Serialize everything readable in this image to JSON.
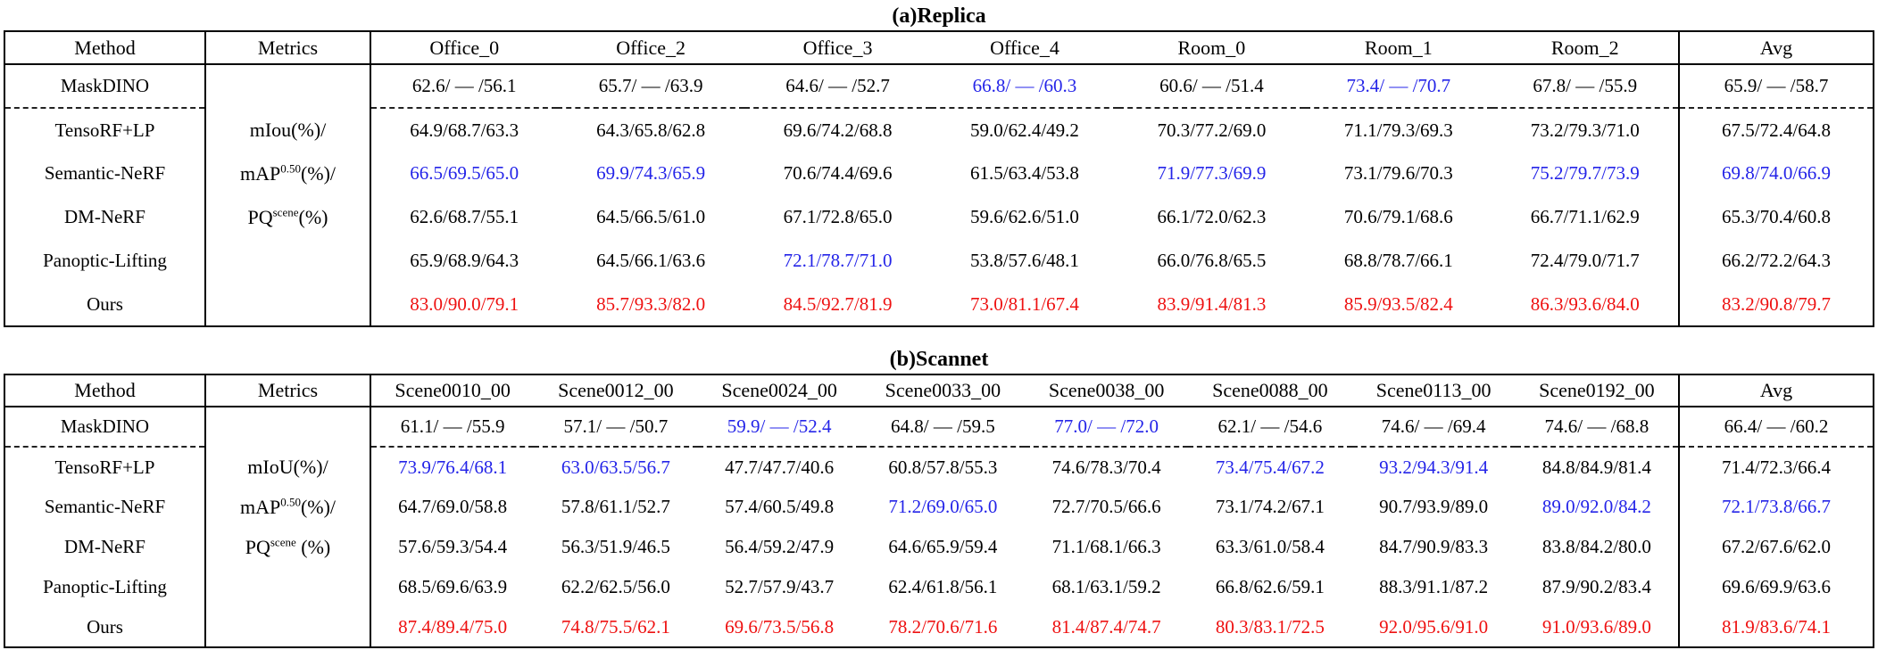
{
  "colors": {
    "best": "#ee1111",
    "second_best": "#2424e8",
    "normal": "#000000"
  },
  "tables": [
    {
      "title": "(a)Replica",
      "method_header": "Method",
      "metrics_header": "Metrics",
      "avg_header": "Avg",
      "scene_headers": [
        "Office_0",
        "Office_2",
        "Office_3",
        "Office_4",
        "Room_0",
        "Room_1",
        "Room_2"
      ],
      "metrics_lines": [
        [
          {
            "t": "mIou(%)/",
            "sup": false
          }
        ],
        [
          {
            "t": "mAP",
            "sup": false
          },
          {
            "t": "0.50",
            "sup": true
          },
          {
            "t": "(%)/",
            "sup": false
          }
        ],
        [
          {
            "t": "PQ",
            "sup": false
          },
          {
            "t": "scene",
            "sup": true
          },
          {
            "t": "(%)",
            "sup": false
          }
        ]
      ],
      "rows": [
        {
          "method": "MaskDINO",
          "cells": [
            {
              "t": "62.6/ — /56.1",
              "c": "k"
            },
            {
              "t": "65.7/ — /63.9",
              "c": "k"
            },
            {
              "t": "64.6/ — /52.7",
              "c": "k"
            },
            {
              "t": "66.8/ — /60.3",
              "c": "b"
            },
            {
              "t": "60.6/ — /51.4",
              "c": "k"
            },
            {
              "t": "73.4/ — /70.7",
              "c": "b"
            },
            {
              "t": "67.8/ — /55.9",
              "c": "k"
            },
            {
              "t": "65.9/ — /58.7",
              "c": "k"
            }
          ]
        },
        {
          "method": "TensoRF+LP",
          "cells": [
            {
              "t": "64.9/68.7/63.3",
              "c": "k"
            },
            {
              "t": "64.3/65.8/62.8",
              "c": "k"
            },
            {
              "t": "69.6/74.2/68.8",
              "c": "k"
            },
            {
              "t": "59.0/62.4/49.2",
              "c": "k"
            },
            {
              "t": "70.3/77.2/69.0",
              "c": "k"
            },
            {
              "t": "71.1/79.3/69.3",
              "c": "k"
            },
            {
              "t": "73.2/79.3/71.0",
              "c": "k"
            },
            {
              "t": "67.5/72.4/64.8",
              "c": "k"
            }
          ]
        },
        {
          "method": "Semantic-NeRF",
          "cells": [
            {
              "t": "66.5/69.5/65.0",
              "c": "b"
            },
            {
              "t": "69.9/74.3/65.9",
              "c": "b"
            },
            {
              "t": "70.6/74.4/69.6",
              "c": "k"
            },
            {
              "t": "61.5/63.4/53.8",
              "c": "k"
            },
            {
              "t": "71.9/77.3/69.9",
              "c": "b"
            },
            {
              "t": "73.1/79.6/70.3",
              "c": "k"
            },
            {
              "t": "75.2/79.7/73.9",
              "c": "b"
            },
            {
              "t": "69.8/74.0/66.9",
              "c": "b"
            }
          ]
        },
        {
          "method": "DM-NeRF",
          "cells": [
            {
              "t": "62.6/68.7/55.1",
              "c": "k"
            },
            {
              "t": "64.5/66.5/61.0",
              "c": "k"
            },
            {
              "t": "67.1/72.8/65.0",
              "c": "k"
            },
            {
              "t": "59.6/62.6/51.0",
              "c": "k"
            },
            {
              "t": "66.1/72.0/62.3",
              "c": "k"
            },
            {
              "t": "70.6/79.1/68.6",
              "c": "k"
            },
            {
              "t": "66.7/71.1/62.9",
              "c": "k"
            },
            {
              "t": "65.3/70.4/60.8",
              "c": "k"
            }
          ]
        },
        {
          "method": "Panoptic-Lifting",
          "cells": [
            {
              "t": "65.9/68.9/64.3",
              "c": "k"
            },
            {
              "t": "64.5/66.1/63.6",
              "c": "k"
            },
            {
              "t": "72.1/78.7/71.0",
              "c": "b"
            },
            {
              "t": "53.8/57.6/48.1",
              "c": "k"
            },
            {
              "t": "66.0/76.8/65.5",
              "c": "k"
            },
            {
              "t": "68.8/78.7/66.1",
              "c": "k"
            },
            {
              "t": "72.4/79.0/71.7",
              "c": "k"
            },
            {
              "t": "66.2/72.2/64.3",
              "c": "k"
            }
          ]
        },
        {
          "method": "Ours",
          "cells": [
            {
              "t": "83.0/90.0/79.1",
              "c": "r"
            },
            {
              "t": "85.7/93.3/82.0",
              "c": "r"
            },
            {
              "t": "84.5/92.7/81.9",
              "c": "r"
            },
            {
              "t": "73.0/81.1/67.4",
              "c": "r"
            },
            {
              "t": "83.9/91.4/81.3",
              "c": "r"
            },
            {
              "t": "85.9/93.5/82.4",
              "c": "r"
            },
            {
              "t": "86.3/93.6/84.0",
              "c": "r"
            },
            {
              "t": "83.2/90.8/79.7",
              "c": "r"
            }
          ]
        }
      ]
    },
    {
      "title": "(b)Scannet",
      "method_header": "Method",
      "metrics_header": "Metrics",
      "avg_header": "Avg",
      "scene_headers": [
        "Scene0010_00",
        "Scene0012_00",
        "Scene0024_00",
        "Scene0033_00",
        "Scene0038_00",
        "Scene0088_00",
        "Scene0113_00",
        "Scene0192_00"
      ],
      "metrics_lines": [
        [
          {
            "t": "mIoU(%)/",
            "sup": false
          }
        ],
        [
          {
            "t": "mAP",
            "sup": false
          },
          {
            "t": "0.50",
            "sup": true
          },
          {
            "t": "(%)/",
            "sup": false
          }
        ],
        [
          {
            "t": "PQ",
            "sup": false
          },
          {
            "t": "scene",
            "sup": true
          },
          {
            "t": " (%)",
            "sup": false
          }
        ]
      ],
      "rows": [
        {
          "method": "MaskDINO",
          "cells": [
            {
              "t": "61.1/ — /55.9",
              "c": "k"
            },
            {
              "t": "57.1/ — /50.7",
              "c": "k"
            },
            {
              "t": "59.9/ — /52.4",
              "c": "b"
            },
            {
              "t": "64.8/ — /59.5",
              "c": "k"
            },
            {
              "t": "77.0/ — /72.0",
              "c": "b"
            },
            {
              "t": "62.1/ — /54.6",
              "c": "k"
            },
            {
              "t": "74.6/ — /69.4",
              "c": "k"
            },
            {
              "t": "74.6/ — /68.8",
              "c": "k"
            },
            {
              "t": "66.4/ — /60.2",
              "c": "k"
            }
          ]
        },
        {
          "method": "TensoRF+LP",
          "cells": [
            {
              "t": "73.9/76.4/68.1",
              "c": "b"
            },
            {
              "t": "63.0/63.5/56.7",
              "c": "b"
            },
            {
              "t": "47.7/47.7/40.6",
              "c": "k"
            },
            {
              "t": "60.8/57.8/55.3",
              "c": "k"
            },
            {
              "t": "74.6/78.3/70.4",
              "c": "k"
            },
            {
              "t": "73.4/75.4/67.2",
              "c": "b"
            },
            {
              "t": "93.2/94.3/91.4",
              "c": "b"
            },
            {
              "t": "84.8/84.9/81.4",
              "c": "k"
            },
            {
              "t": "71.4/72.3/66.4",
              "c": "k"
            }
          ]
        },
        {
          "method": "Semantic-NeRF",
          "cells": [
            {
              "t": "64.7/69.0/58.8",
              "c": "k"
            },
            {
              "t": "57.8/61.1/52.7",
              "c": "k"
            },
            {
              "t": "57.4/60.5/49.8",
              "c": "k"
            },
            {
              "t": "71.2/69.0/65.0",
              "c": "b"
            },
            {
              "t": "72.7/70.5/66.6",
              "c": "k"
            },
            {
              "t": "73.1/74.2/67.1",
              "c": "k"
            },
            {
              "t": "90.7/93.9/89.0",
              "c": "k"
            },
            {
              "t": "89.0/92.0/84.2",
              "c": "b"
            },
            {
              "t": "72.1/73.8/66.7",
              "c": "b"
            }
          ]
        },
        {
          "method": "DM-NeRF",
          "cells": [
            {
              "t": "57.6/59.3/54.4",
              "c": "k"
            },
            {
              "t": "56.3/51.9/46.5",
              "c": "k"
            },
            {
              "t": "56.4/59.2/47.9",
              "c": "k"
            },
            {
              "t": "64.6/65.9/59.4",
              "c": "k"
            },
            {
              "t": "71.1/68.1/66.3",
              "c": "k"
            },
            {
              "t": "63.3/61.0/58.4",
              "c": "k"
            },
            {
              "t": "84.7/90.9/83.3",
              "c": "k"
            },
            {
              "t": "83.8/84.2/80.0",
              "c": "k"
            },
            {
              "t": "67.2/67.6/62.0",
              "c": "k"
            }
          ]
        },
        {
          "method": "Panoptic-Lifting",
          "cells": [
            {
              "t": "68.5/69.6/63.9",
              "c": "k"
            },
            {
              "t": "62.2/62.5/56.0",
              "c": "k"
            },
            {
              "t": "52.7/57.9/43.7",
              "c": "k"
            },
            {
              "t": "62.4/61.8/56.1",
              "c": "k"
            },
            {
              "t": "68.1/63.1/59.2",
              "c": "k"
            },
            {
              "t": "66.8/62.6/59.1",
              "c": "k"
            },
            {
              "t": "88.3/91.1/87.2",
              "c": "k"
            },
            {
              "t": "87.9/90.2/83.4",
              "c": "k"
            },
            {
              "t": "69.6/69.9/63.6",
              "c": "k"
            }
          ]
        },
        {
          "method": "Ours",
          "cells": [
            {
              "t": "87.4/89.4/75.0",
              "c": "r"
            },
            {
              "t": "74.8/75.5/62.1",
              "c": "r"
            },
            {
              "t": "69.6/73.5/56.8",
              "c": "r"
            },
            {
              "t": "78.2/70.6/71.6",
              "c": "r"
            },
            {
              "t": "81.4/87.4/74.7",
              "c": "r"
            },
            {
              "t": "80.3/83.1/72.5",
              "c": "r"
            },
            {
              "t": "92.0/95.6/91.0",
              "c": "r"
            },
            {
              "t": "91.0/93.6/89.0",
              "c": "r"
            },
            {
              "t": "81.9/83.6/74.1",
              "c": "r"
            }
          ]
        }
      ]
    }
  ]
}
